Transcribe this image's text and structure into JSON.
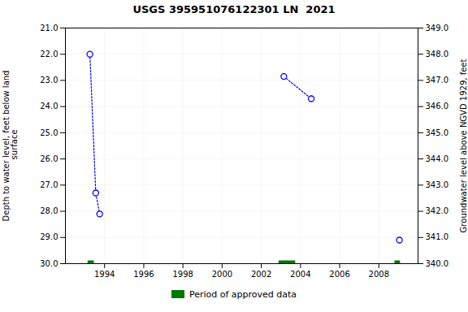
{
  "chart_data": {
    "type": "scatter",
    "title": "USGS 395951076122301 LN  2021",
    "ylabel": "Depth to water level, feet below land\n surface",
    "y2label": "Groundwater level above NGVD 1929, feet",
    "xlim": [
      1992.0,
      2010.0
    ],
    "xticks": [
      1994,
      1996,
      1998,
      2000,
      2002,
      2004,
      2006,
      2008
    ],
    "ylim": [
      30.0,
      21.0
    ],
    "yticks": [
      {
        "value": 21.0,
        "label": "21.0"
      },
      {
        "value": 22.0,
        "label": "22.0"
      },
      {
        "value": 23.0,
        "label": "23.0"
      },
      {
        "value": 24.0,
        "label": "24.0"
      },
      {
        "value": 25.0,
        "label": "25.0"
      },
      {
        "value": 26.0,
        "label": "26.0"
      },
      {
        "value": 27.0,
        "label": "27.0"
      },
      {
        "value": 28.0,
        "label": "28.0"
      },
      {
        "value": 29.0,
        "label": "29.0"
      },
      {
        "value": 30.0,
        "label": "30.0"
      }
    ],
    "y2lim": [
      340.0,
      349.0
    ],
    "y2ticks": [
      {
        "value": 349.0,
        "label": "349.0"
      },
      {
        "value": 348.0,
        "label": "348.0"
      },
      {
        "value": 347.0,
        "label": "347.0"
      },
      {
        "value": 346.0,
        "label": "346.0"
      },
      {
        "value": 345.0,
        "label": "345.0"
      },
      {
        "value": 344.0,
        "label": "344.0"
      },
      {
        "value": 343.0,
        "label": "343.0"
      },
      {
        "value": 342.0,
        "label": "342.0"
      },
      {
        "value": 341.0,
        "label": "341.0"
      },
      {
        "value": 340.0,
        "label": "340.0"
      }
    ],
    "grid": true,
    "legend": "bottom",
    "series": [
      {
        "name": "Period of approved data",
        "type": "span",
        "color": "#007700",
        "x": [
          1993.15,
          2002.9,
          2008.82
        ],
        "widths": [
          0.32,
          0.85,
          0.28
        ]
      },
      {
        "type": "line",
        "color": "blue",
        "line_style": "dotted",
        "x": [
          1993.25,
          1993.55,
          1993.75
        ],
        "values": [
          22.0,
          27.3,
          28.1
        ]
      },
      {
        "type": "line",
        "color": "blue",
        "line_style": "dotted",
        "x": [
          2003.15,
          2004.55
        ],
        "values": [
          22.85,
          23.7
        ]
      },
      {
        "type": "scatter",
        "color": "blue",
        "marker": "circle",
        "x": [
          1993.25,
          1993.55,
          1993.75,
          2003.15,
          2004.55,
          2009.05
        ],
        "values": [
          22.0,
          27.3,
          28.1,
          22.85,
          23.7,
          29.1
        ]
      }
    ]
  }
}
